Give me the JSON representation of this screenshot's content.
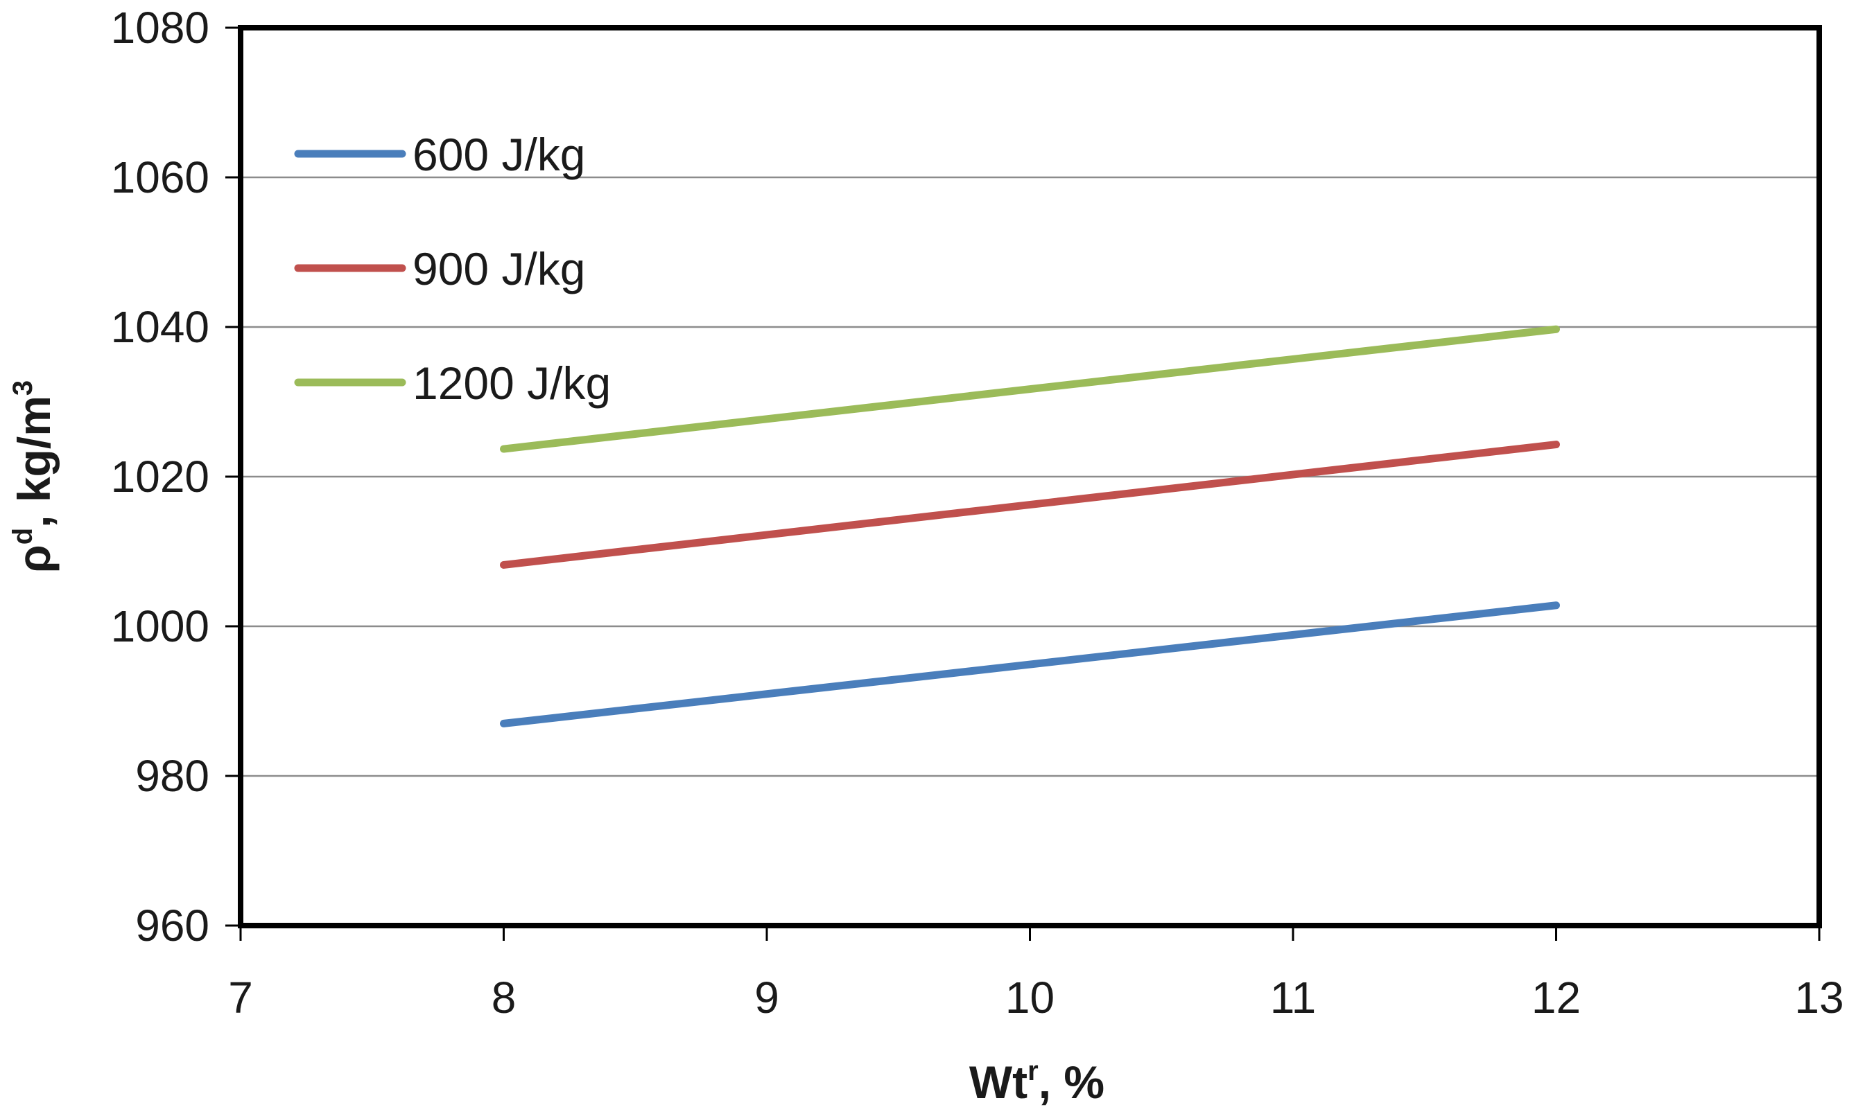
{
  "chart_data": {
    "type": "line",
    "title": "",
    "xlabel": {
      "base": "Wt",
      "sup": "r",
      "rest": ", %"
    },
    "ylabel": {
      "base": "ρ",
      "sup": "d",
      "mid": ", kg/m",
      "sup2": "3"
    },
    "xlim": [
      7,
      13
    ],
    "ylim": [
      960,
      1080
    ],
    "xticks": [
      7,
      8,
      9,
      10,
      11,
      12,
      13
    ],
    "yticks": [
      960,
      980,
      1000,
      1020,
      1040,
      1060,
      1080
    ],
    "grid": "horizontal",
    "legend_position": "top-left",
    "series": [
      {
        "name": "600 J/kg",
        "color": "#4a7ebb",
        "x": [
          8,
          12
        ],
        "y": [
          987,
          1002.8
        ]
      },
      {
        "name": "900 J/kg",
        "color": "#c0504d",
        "x": [
          8,
          12
        ],
        "y": [
          1008.2,
          1024.3
        ]
      },
      {
        "name": "1200 J/kg",
        "color": "#9bbb59",
        "x": [
          8,
          12
        ],
        "y": [
          1023.7,
          1039.7
        ]
      }
    ]
  }
}
